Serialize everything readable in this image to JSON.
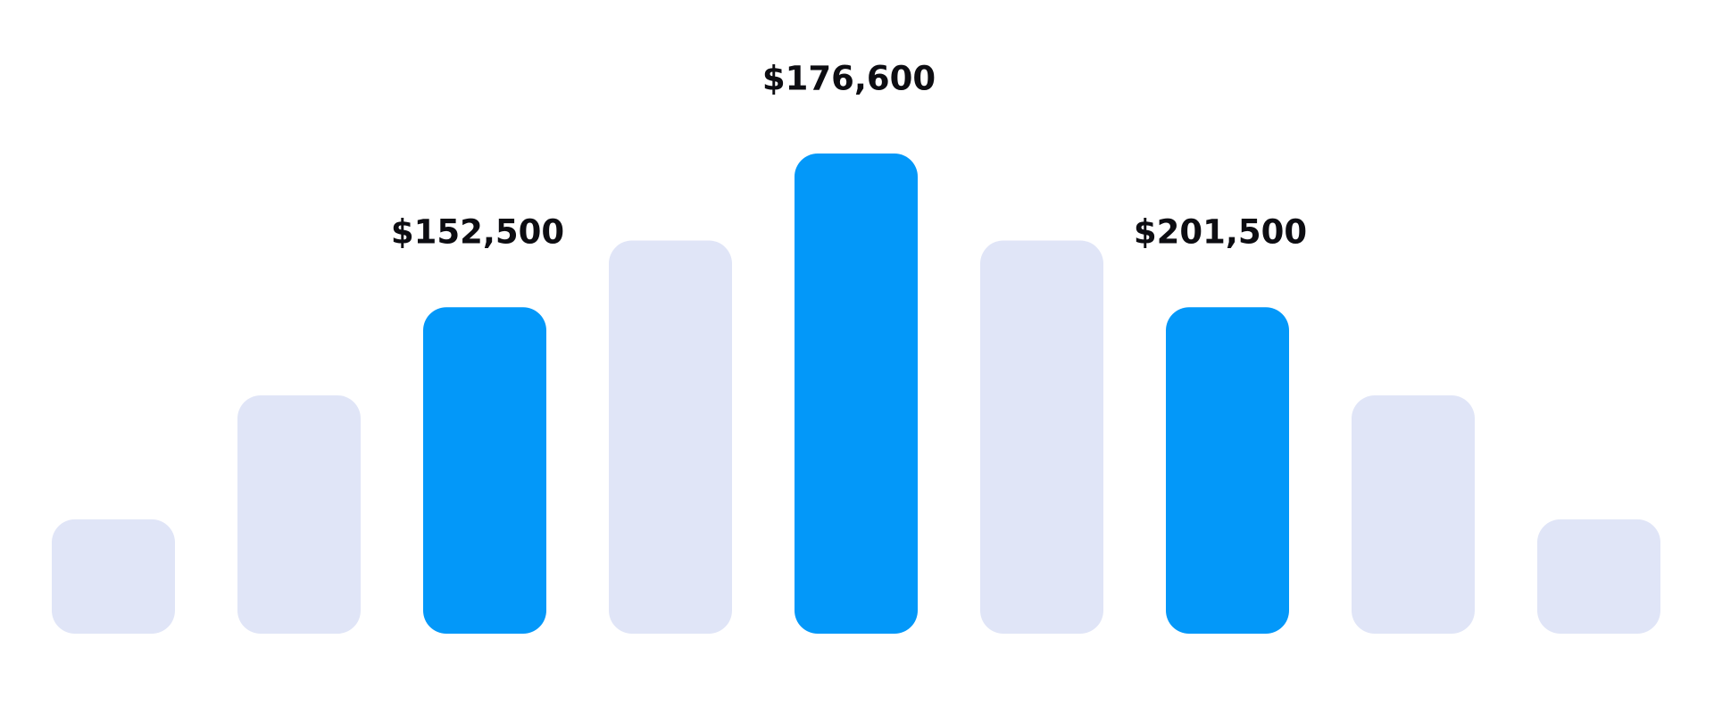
{
  "colors": {
    "background": "#ffffff",
    "highlight": "#0398f9",
    "muted": "#e0e5f7",
    "label": "#0d0d12"
  },
  "chart_data": {
    "type": "bar",
    "title": "",
    "xlabel": "",
    "ylabel": "",
    "ylim": [
      0,
      201500
    ],
    "grid": false,
    "legend": "none",
    "bars": [
      {
        "value": 48000,
        "highlight": false,
        "label": ""
      },
      {
        "value": 100000,
        "highlight": false,
        "label": ""
      },
      {
        "value": 137000,
        "highlight": true,
        "label": "$152,500"
      },
      {
        "value": 165000,
        "highlight": false,
        "label": ""
      },
      {
        "value": 201500,
        "highlight": true,
        "label": "$176,600"
      },
      {
        "value": 165000,
        "highlight": false,
        "label": ""
      },
      {
        "value": 137000,
        "highlight": true,
        "label": "$201,500"
      },
      {
        "value": 100000,
        "highlight": false,
        "label": ""
      },
      {
        "value": 48000,
        "highlight": false,
        "label": ""
      }
    ]
  }
}
